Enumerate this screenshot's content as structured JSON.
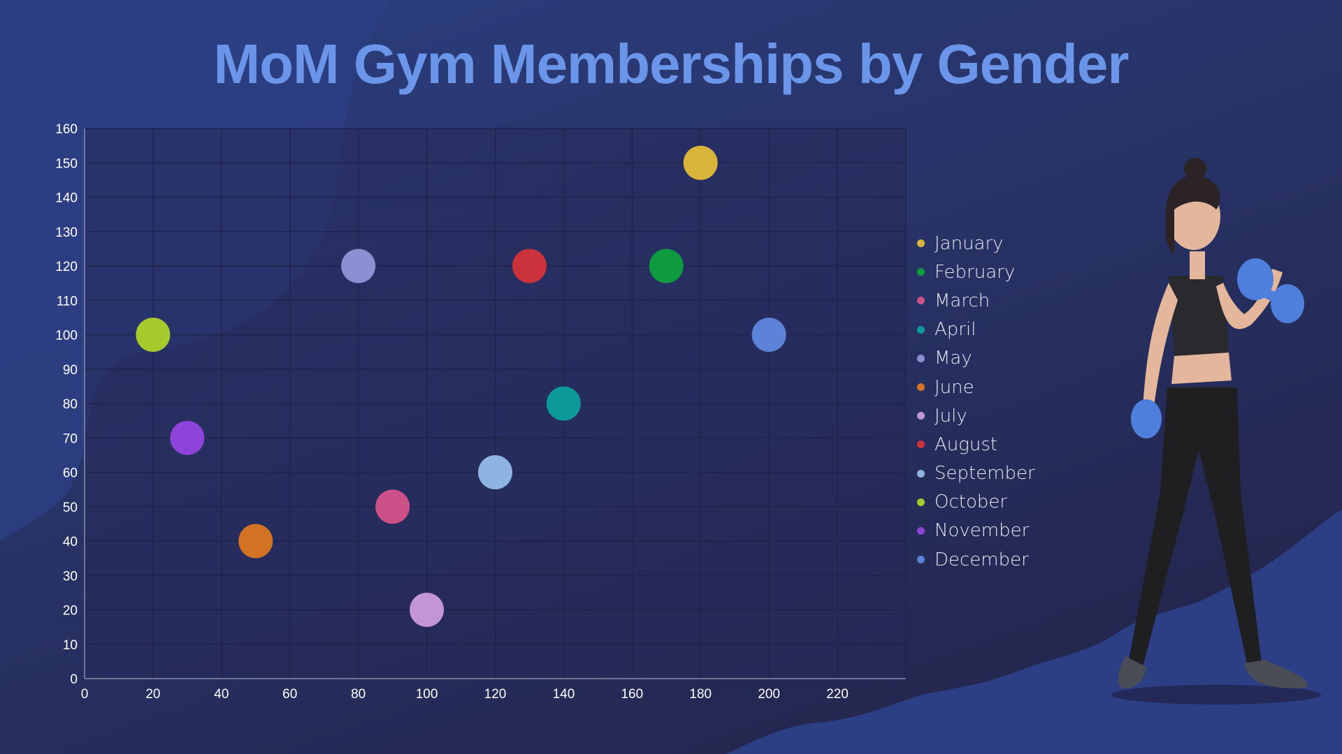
{
  "title": "MoM Gym Memberships by Gender",
  "colors": {
    "title": "#6a95e8",
    "plot_bg": "#26295a",
    "grid": "#1f2247",
    "axis": "#8a8fb0"
  },
  "chart_data": {
    "type": "scatter",
    "title": "MoM Gym Memberships by Gender",
    "xlabel": "",
    "ylabel": "",
    "xlim": [
      0,
      240
    ],
    "ylim": [
      0,
      160
    ],
    "x_ticks": [
      0,
      20,
      40,
      60,
      80,
      100,
      120,
      140,
      160,
      180,
      200,
      220
    ],
    "y_ticks": [
      0,
      10,
      20,
      30,
      40,
      50,
      60,
      70,
      80,
      90,
      100,
      110,
      120,
      130,
      140,
      150,
      160
    ],
    "grid": true,
    "legend_position": "right",
    "series": [
      {
        "name": "January",
        "color": "#d8b53a",
        "x": 180,
        "y": 150
      },
      {
        "name": "February",
        "color": "#0e9a3f",
        "x": 170,
        "y": 120
      },
      {
        "name": "March",
        "color": "#cc5188",
        "x": 90,
        "y": 50
      },
      {
        "name": "April",
        "color": "#0c9a98",
        "x": 140,
        "y": 80
      },
      {
        "name": "May",
        "color": "#8c8fd2",
        "x": 80,
        "y": 120
      },
      {
        "name": "June",
        "color": "#d37424",
        "x": 50,
        "y": 40
      },
      {
        "name": "July",
        "color": "#c394d6",
        "x": 100,
        "y": 20
      },
      {
        "name": "August",
        "color": "#cc323c",
        "x": 130,
        "y": 120
      },
      {
        "name": "September",
        "color": "#8eb5e2",
        "x": 120,
        "y": 60
      },
      {
        "name": "October",
        "color": "#a6c92b",
        "x": 20,
        "y": 100
      },
      {
        "name": "November",
        "color": "#8e43d8",
        "x": 30,
        "y": 70
      },
      {
        "name": "December",
        "color": "#5c83d8",
        "x": 200,
        "y": 100
      }
    ]
  }
}
